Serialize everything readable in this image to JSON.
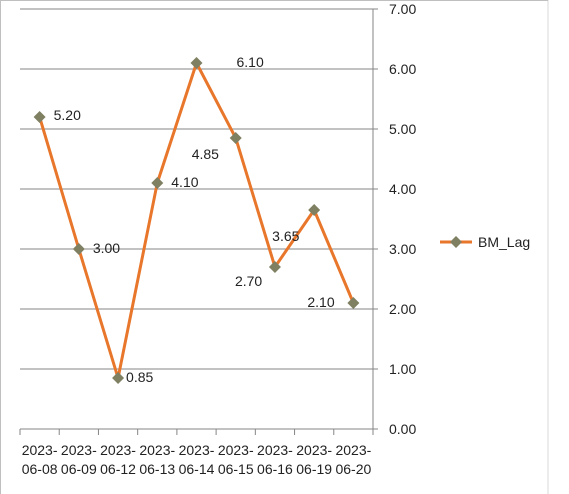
{
  "chart_data": {
    "type": "line",
    "categories": [
      "2023-06-08",
      "2023-06-09",
      "2023-06-12",
      "2023-06-13",
      "2023-06-14",
      "2023-06-15",
      "2023-06-16",
      "2023-06-19",
      "2023-06-20"
    ],
    "series": [
      {
        "name": "BM_Lag",
        "color": "#e8762b",
        "marker_color": "#7f7f62",
        "values": [
          5.2,
          3.0,
          0.85,
          4.1,
          6.1,
          4.85,
          2.7,
          3.65,
          2.1
        ],
        "value_labels": [
          "5.20",
          "3.00",
          "0.85",
          "4.10",
          "6.10",
          "4.85",
          "2.70",
          "3.65",
          "2.10"
        ]
      }
    ],
    "ylim": [
      0,
      7
    ],
    "yticks": [
      {
        "value": 0,
        "label": "0.00"
      },
      {
        "value": 1,
        "label": "1.00"
      },
      {
        "value": 2,
        "label": "2.00"
      },
      {
        "value": 3,
        "label": "3.00"
      },
      {
        "value": 4,
        "label": "4.00"
      },
      {
        "value": 5,
        "label": "5.00"
      },
      {
        "value": 6,
        "label": "6.00"
      },
      {
        "value": 7,
        "label": "7.00"
      }
    ],
    "y_axis_side": "right",
    "grid": true,
    "legend": "right"
  }
}
